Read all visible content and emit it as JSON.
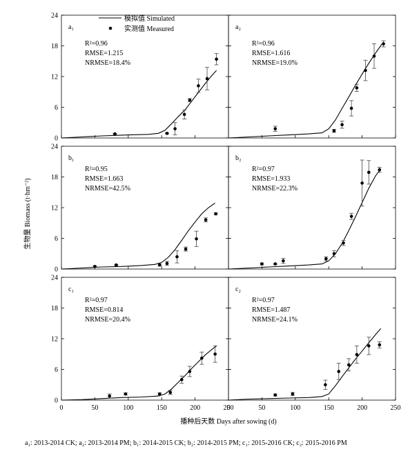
{
  "figure": {
    "y_axis_label": "生物量 Biomass (t·hm⁻²)",
    "x_axis_label": "播种后天数 Days after sowing (d)",
    "legend": {
      "simulated": "模拟值 Simulated",
      "measured": "实测值 Measured"
    },
    "caption": "a₁: 2013-2014 CK; a₂: 2013-2014 PM; b₁: 2014-2015 CK; b₂: 2014-2015 PM; c₁: 2015-2016 CK; c₂: 2015-2016 PM"
  },
  "chart_data": [
    {
      "id": "a1",
      "panel_label": "a₁",
      "type": "line",
      "xlim": [
        0,
        250
      ],
      "ylim": [
        0,
        24
      ],
      "x_ticks": [],
      "y_ticks": [
        0,
        6,
        12,
        18,
        24
      ],
      "stats": {
        "r2": "R²=0.96",
        "rmse": "RMSE=1.215",
        "nrmse": "NRMSE=18.4%"
      },
      "simulated": {
        "x": [
          0,
          30,
          60,
          80,
          100,
          130,
          145,
          155,
          165,
          175,
          185,
          195,
          205,
          215,
          225,
          232
        ],
        "y": [
          0,
          0.2,
          0.4,
          0.5,
          0.6,
          0.7,
          0.9,
          1.5,
          2.8,
          4.2,
          5.5,
          7.2,
          8.9,
          10.6,
          12.2,
          13.2
        ]
      },
      "measured": [
        {
          "x": 80,
          "y": 0.8,
          "err": 0.1
        },
        {
          "x": 158,
          "y": 0.9,
          "err": 0.1
        },
        {
          "x": 170,
          "y": 1.8,
          "err": 1.2
        },
        {
          "x": 184,
          "y": 4.6,
          "err": 0.9
        },
        {
          "x": 192,
          "y": 7.4,
          "err": 0.3
        },
        {
          "x": 205,
          "y": 10.2,
          "err": 1.3
        },
        {
          "x": 218,
          "y": 11.6,
          "err": 2.2
        },
        {
          "x": 232,
          "y": 15.4,
          "err": 1.1
        }
      ]
    },
    {
      "id": "a2",
      "panel_label": "a₂",
      "type": "line",
      "xlim": [
        0,
        250
      ],
      "ylim": [
        0,
        24
      ],
      "x_ticks": [],
      "y_ticks": [],
      "stats": {
        "r2": "R²=0.96",
        "rmse": "RMSE=1.616",
        "nrmse": "NRMSE=19.0%"
      },
      "simulated": {
        "x": [
          0,
          30,
          60,
          90,
          120,
          140,
          150,
          160,
          170,
          180,
          190,
          200,
          210,
          220,
          230
        ],
        "y": [
          0,
          0.2,
          0.4,
          0.6,
          0.8,
          1.0,
          1.8,
          3.5,
          5.8,
          8.0,
          10.3,
          12.5,
          14.6,
          16.6,
          18.4
        ]
      },
      "measured": [
        {
          "x": 70,
          "y": 1.8,
          "err": 0.5
        },
        {
          "x": 158,
          "y": 1.4,
          "err": 0.3
        },
        {
          "x": 170,
          "y": 2.6,
          "err": 0.7
        },
        {
          "x": 184,
          "y": 5.8,
          "err": 1.5
        },
        {
          "x": 192,
          "y": 9.8,
          "err": 0.7
        },
        {
          "x": 205,
          "y": 13.2,
          "err": 2.0
        },
        {
          "x": 218,
          "y": 16.0,
          "err": 2.4
        },
        {
          "x": 232,
          "y": 18.4,
          "err": 0.6
        }
      ]
    },
    {
      "id": "b1",
      "panel_label": "b₁",
      "type": "line",
      "xlim": [
        0,
        250
      ],
      "ylim": [
        0,
        24
      ],
      "x_ticks": [],
      "y_ticks": [
        0,
        6,
        12,
        18,
        24
      ],
      "stats": {
        "r2": "R²=0.95",
        "rmse": "RMSE=1.663",
        "nrmse": "NRMSE=42.5%"
      },
      "simulated": {
        "x": [
          0,
          30,
          60,
          90,
          120,
          140,
          150,
          160,
          170,
          180,
          190,
          200,
          210,
          220,
          230
        ],
        "y": [
          0,
          0.2,
          0.4,
          0.5,
          0.7,
          0.9,
          1.3,
          2.3,
          3.8,
          5.6,
          7.5,
          9.2,
          10.8,
          12.0,
          12.9
        ]
      },
      "measured": [
        {
          "x": 50,
          "y": 0.5,
          "err": 0.1
        },
        {
          "x": 82,
          "y": 0.8,
          "err": 0.1
        },
        {
          "x": 147,
          "y": 0.8,
          "err": 0.2
        },
        {
          "x": 158,
          "y": 1.1,
          "err": 0.4
        },
        {
          "x": 173,
          "y": 2.4,
          "err": 1.2
        },
        {
          "x": 186,
          "y": 3.9,
          "err": 0.4
        },
        {
          "x": 202,
          "y": 5.9,
          "err": 1.5
        },
        {
          "x": 216,
          "y": 9.6,
          "err": 0.4
        },
        {
          "x": 231,
          "y": 10.8,
          "err": 0.2
        }
      ]
    },
    {
      "id": "b2",
      "panel_label": "b₂",
      "type": "line",
      "xlim": [
        0,
        250
      ],
      "ylim": [
        0,
        24
      ],
      "x_ticks": [],
      "y_ticks": [],
      "stats": {
        "r2": "R²=0.97",
        "rmse": "RMSE=1.933",
        "nrmse": "NRMSE=22.3%"
      },
      "simulated": {
        "x": [
          0,
          30,
          60,
          90,
          120,
          140,
          150,
          160,
          170,
          180,
          190,
          200,
          210,
          220,
          228
        ],
        "y": [
          0,
          0.2,
          0.4,
          0.6,
          0.8,
          1.0,
          1.6,
          3.0,
          5.0,
          7.5,
          10.2,
          13.0,
          15.8,
          18.2,
          19.6
        ]
      },
      "measured": [
        {
          "x": 50,
          "y": 1.0,
          "err": 0.2
        },
        {
          "x": 70,
          "y": 1.0,
          "err": 0.1
        },
        {
          "x": 82,
          "y": 1.6,
          "err": 0.5
        },
        {
          "x": 146,
          "y": 2.0,
          "err": 0.4
        },
        {
          "x": 158,
          "y": 3.0,
          "err": 0.6
        },
        {
          "x": 172,
          "y": 5.1,
          "err": 0.5
        },
        {
          "x": 184,
          "y": 10.3,
          "err": 0.6
        },
        {
          "x": 200,
          "y": 16.8,
          "err": 4.5
        },
        {
          "x": 210,
          "y": 18.9,
          "err": 2.3
        },
        {
          "x": 226,
          "y": 19.4,
          "err": 0.5
        }
      ]
    },
    {
      "id": "c1",
      "panel_label": "c₁",
      "type": "line",
      "xlim": [
        0,
        250
      ],
      "ylim": [
        0,
        24
      ],
      "x_ticks": [
        0,
        50,
        100,
        150,
        200,
        250
      ],
      "y_ticks": [
        0,
        6,
        12,
        18,
        24
      ],
      "stats": {
        "r2": "R²=0.97",
        "rmse": "RMSE=0.814",
        "nrmse": "NRMSE=20.4%"
      },
      "simulated": {
        "x": [
          0,
          30,
          60,
          90,
          120,
          145,
          155,
          165,
          175,
          185,
          195,
          205,
          215,
          225,
          232
        ],
        "y": [
          0,
          0.1,
          0.3,
          0.5,
          0.6,
          0.8,
          1.2,
          2.2,
          3.5,
          4.8,
          6.2,
          7.5,
          8.8,
          9.9,
          10.6
        ]
      },
      "measured": [
        {
          "x": 72,
          "y": 0.8,
          "err": 0.4
        },
        {
          "x": 96,
          "y": 1.2,
          "err": 0.2
        },
        {
          "x": 147,
          "y": 1.2,
          "err": 0.2
        },
        {
          "x": 163,
          "y": 1.5,
          "err": 0.4
        },
        {
          "x": 180,
          "y": 4.0,
          "err": 0.7
        },
        {
          "x": 192,
          "y": 5.6,
          "err": 1.0
        },
        {
          "x": 210,
          "y": 8.2,
          "err": 1.2
        },
        {
          "x": 230,
          "y": 9.0,
          "err": 1.6
        }
      ]
    },
    {
      "id": "c2",
      "panel_label": "c₂",
      "type": "line",
      "xlim": [
        0,
        250
      ],
      "ylim": [
        0,
        24
      ],
      "x_ticks": [
        0,
        50,
        100,
        150,
        200,
        250
      ],
      "y_ticks": [],
      "stats": {
        "r2": "R²=0.97",
        "rmse": "RMSE=1.487",
        "nrmse": "NRMSE=24.1%"
      },
      "simulated": {
        "x": [
          0,
          30,
          60,
          90,
          120,
          140,
          150,
          160,
          170,
          180,
          190,
          200,
          210,
          220,
          228
        ],
        "y": [
          0,
          0.2,
          0.3,
          0.4,
          0.5,
          0.7,
          1.2,
          2.8,
          4.6,
          6.3,
          8.0,
          9.6,
          11.2,
          12.8,
          14.0
        ]
      },
      "measured": [
        {
          "x": 70,
          "y": 1.0,
          "err": 0.2
        },
        {
          "x": 96,
          "y": 1.2,
          "err": 0.3
        },
        {
          "x": 145,
          "y": 3.0,
          "err": 0.9
        },
        {
          "x": 165,
          "y": 5.6,
          "err": 1.6
        },
        {
          "x": 180,
          "y": 6.9,
          "err": 1.2
        },
        {
          "x": 192,
          "y": 8.9,
          "err": 1.7
        },
        {
          "x": 210,
          "y": 10.6,
          "err": 1.7
        },
        {
          "x": 226,
          "y": 10.8,
          "err": 0.6
        }
      ]
    }
  ]
}
